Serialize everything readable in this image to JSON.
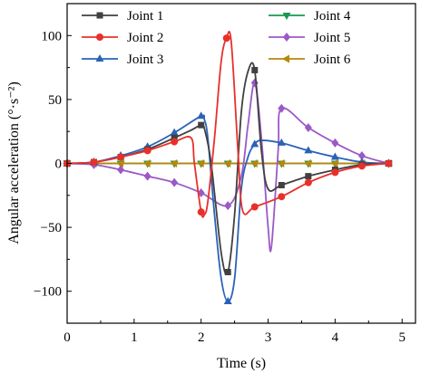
{
  "chart_data": {
    "type": "line",
    "xlabel": "Time (s)",
    "ylabel": "Angular acceleration (°·s⁻²)",
    "xlim": [
      0,
      5.2
    ],
    "ylim": [
      -125,
      125
    ],
    "xticks": [
      0,
      1,
      2,
      3,
      4,
      5
    ],
    "yticks": [
      -100,
      -50,
      0,
      50,
      100
    ],
    "grid": false,
    "legend_position": "top (two columns)",
    "series": [
      {
        "name": "Joint 1",
        "color": "#404040",
        "marker": "square",
        "x": [
          0,
          0.4,
          0.8,
          1.2,
          1.6,
          1.85,
          2.0,
          2.05,
          2.15,
          2.3,
          2.4,
          2.5,
          2.6,
          2.7,
          2.8,
          2.9,
          3.0,
          3.2,
          3.6,
          4.0,
          4.4,
          4.8
        ],
        "y": [
          0,
          1,
          5,
          11,
          20,
          26,
          30,
          27,
          0,
          -70,
          -85,
          -40,
          40,
          72,
          73,
          10,
          -20,
          -17,
          -10,
          -5,
          -1,
          0
        ],
        "markers_x": [
          0,
          0.4,
          0.8,
          1.2,
          1.6,
          2.0,
          2.4,
          2.8,
          3.2,
          3.6,
          4.0,
          4.4,
          4.8
        ],
        "markers_y": [
          0,
          1,
          5,
          11,
          20,
          30,
          -85,
          73,
          -17,
          -10,
          -5,
          -1,
          0
        ]
      },
      {
        "name": "Joint 2",
        "color": "#e8302b",
        "marker": "circle",
        "x": [
          0,
          0.4,
          0.8,
          1.2,
          1.6,
          1.85,
          1.9,
          2.0,
          2.05,
          2.1,
          2.2,
          2.3,
          2.38,
          2.45,
          2.55,
          2.62,
          2.8,
          3.2,
          3.6,
          4.0,
          4.4,
          4.8
        ],
        "y": [
          0,
          1,
          5,
          10,
          17,
          20,
          0,
          -38,
          -40,
          -30,
          20,
          80,
          98,
          95,
          10,
          -37,
          -34,
          -26,
          -15,
          -7,
          -2,
          0
        ],
        "markers_x": [
          0,
          0.4,
          0.8,
          1.2,
          1.6,
          2.0,
          2.38,
          2.8,
          3.2,
          3.6,
          4.0,
          4.4,
          4.8
        ],
        "markers_y": [
          0,
          1,
          5,
          10,
          17,
          -38,
          98,
          -34,
          -26,
          -15,
          -7,
          -2,
          0
        ]
      },
      {
        "name": "Joint 3",
        "color": "#2a62b8",
        "marker": "triangle",
        "x": [
          0,
          0.4,
          0.8,
          1.2,
          1.6,
          2.0,
          2.05,
          2.1,
          2.2,
          2.3,
          2.4,
          2.5,
          2.6,
          2.7,
          2.8,
          2.9,
          3.2,
          3.6,
          4.0,
          4.4,
          4.8
        ],
        "y": [
          0,
          1,
          6,
          13,
          24,
          37,
          34,
          20,
          -40,
          -90,
          -108,
          -90,
          -20,
          5,
          15,
          18,
          16,
          10,
          5,
          1,
          0
        ],
        "markers_x": [
          0,
          0.4,
          0.8,
          1.2,
          1.6,
          2.0,
          2.4,
          2.8,
          3.2,
          3.6,
          4.0,
          4.4,
          4.8
        ],
        "markers_y": [
          0,
          1,
          6,
          13,
          24,
          37,
          -108,
          15,
          16,
          10,
          5,
          1,
          0
        ]
      },
      {
        "name": "Joint 4",
        "color": "#1a9850",
        "marker": "triangle-down",
        "x": [
          0,
          0.4,
          0.8,
          1.2,
          1.6,
          2.0,
          2.4,
          2.8,
          3.2,
          3.6,
          4.0,
          4.4,
          4.8
        ],
        "y": [
          0,
          0,
          0,
          0,
          0,
          0,
          0,
          0,
          0,
          0,
          0,
          0,
          0
        ],
        "markers_x": [
          0,
          0.4,
          0.8,
          1.2,
          1.6,
          2.0,
          2.4,
          2.8,
          3.2,
          3.6,
          4.0,
          4.4,
          4.8
        ],
        "markers_y": [
          0,
          0,
          0,
          0,
          0,
          0,
          0,
          0,
          0,
          0,
          0,
          0,
          0
        ]
      },
      {
        "name": "Joint 5",
        "color": "#9b59c6",
        "marker": "diamond",
        "x": [
          0,
          0.4,
          0.8,
          1.2,
          1.6,
          2.0,
          2.4,
          2.6,
          2.7,
          2.8,
          2.9,
          3.0,
          3.05,
          3.15,
          3.2,
          3.6,
          4.0,
          4.4,
          4.8
        ],
        "y": [
          0,
          -1,
          -5,
          -10,
          -15,
          -23,
          -33,
          -10,
          30,
          63,
          20,
          -50,
          -65,
          10,
          43,
          28,
          16,
          6,
          0
        ],
        "markers_x": [
          0,
          0.4,
          0.8,
          1.2,
          1.6,
          2.0,
          2.4,
          2.8,
          3.2,
          3.6,
          4.0,
          4.4,
          4.8
        ],
        "markers_y": [
          0,
          -1,
          -5,
          -10,
          -15,
          -23,
          -33,
          63,
          43,
          28,
          16,
          6,
          0
        ]
      },
      {
        "name": "Joint 6",
        "color": "#b8860b",
        "marker": "triangle-left",
        "x": [
          0,
          0.4,
          0.8,
          1.2,
          1.6,
          2.0,
          2.4,
          2.8,
          3.2,
          3.6,
          4.0,
          4.4,
          4.8
        ],
        "y": [
          0,
          0,
          0,
          0,
          0,
          0,
          0,
          0,
          0,
          0,
          0,
          0,
          0
        ],
        "markers_x": [
          0,
          0.4,
          0.8,
          1.2,
          1.6,
          2.0,
          2.4,
          2.8,
          3.2,
          3.6,
          4.0,
          4.4,
          4.8
        ],
        "markers_y": [
          0,
          0,
          0,
          0,
          0,
          0,
          0,
          0,
          0,
          0,
          0,
          0,
          0
        ]
      }
    ]
  }
}
